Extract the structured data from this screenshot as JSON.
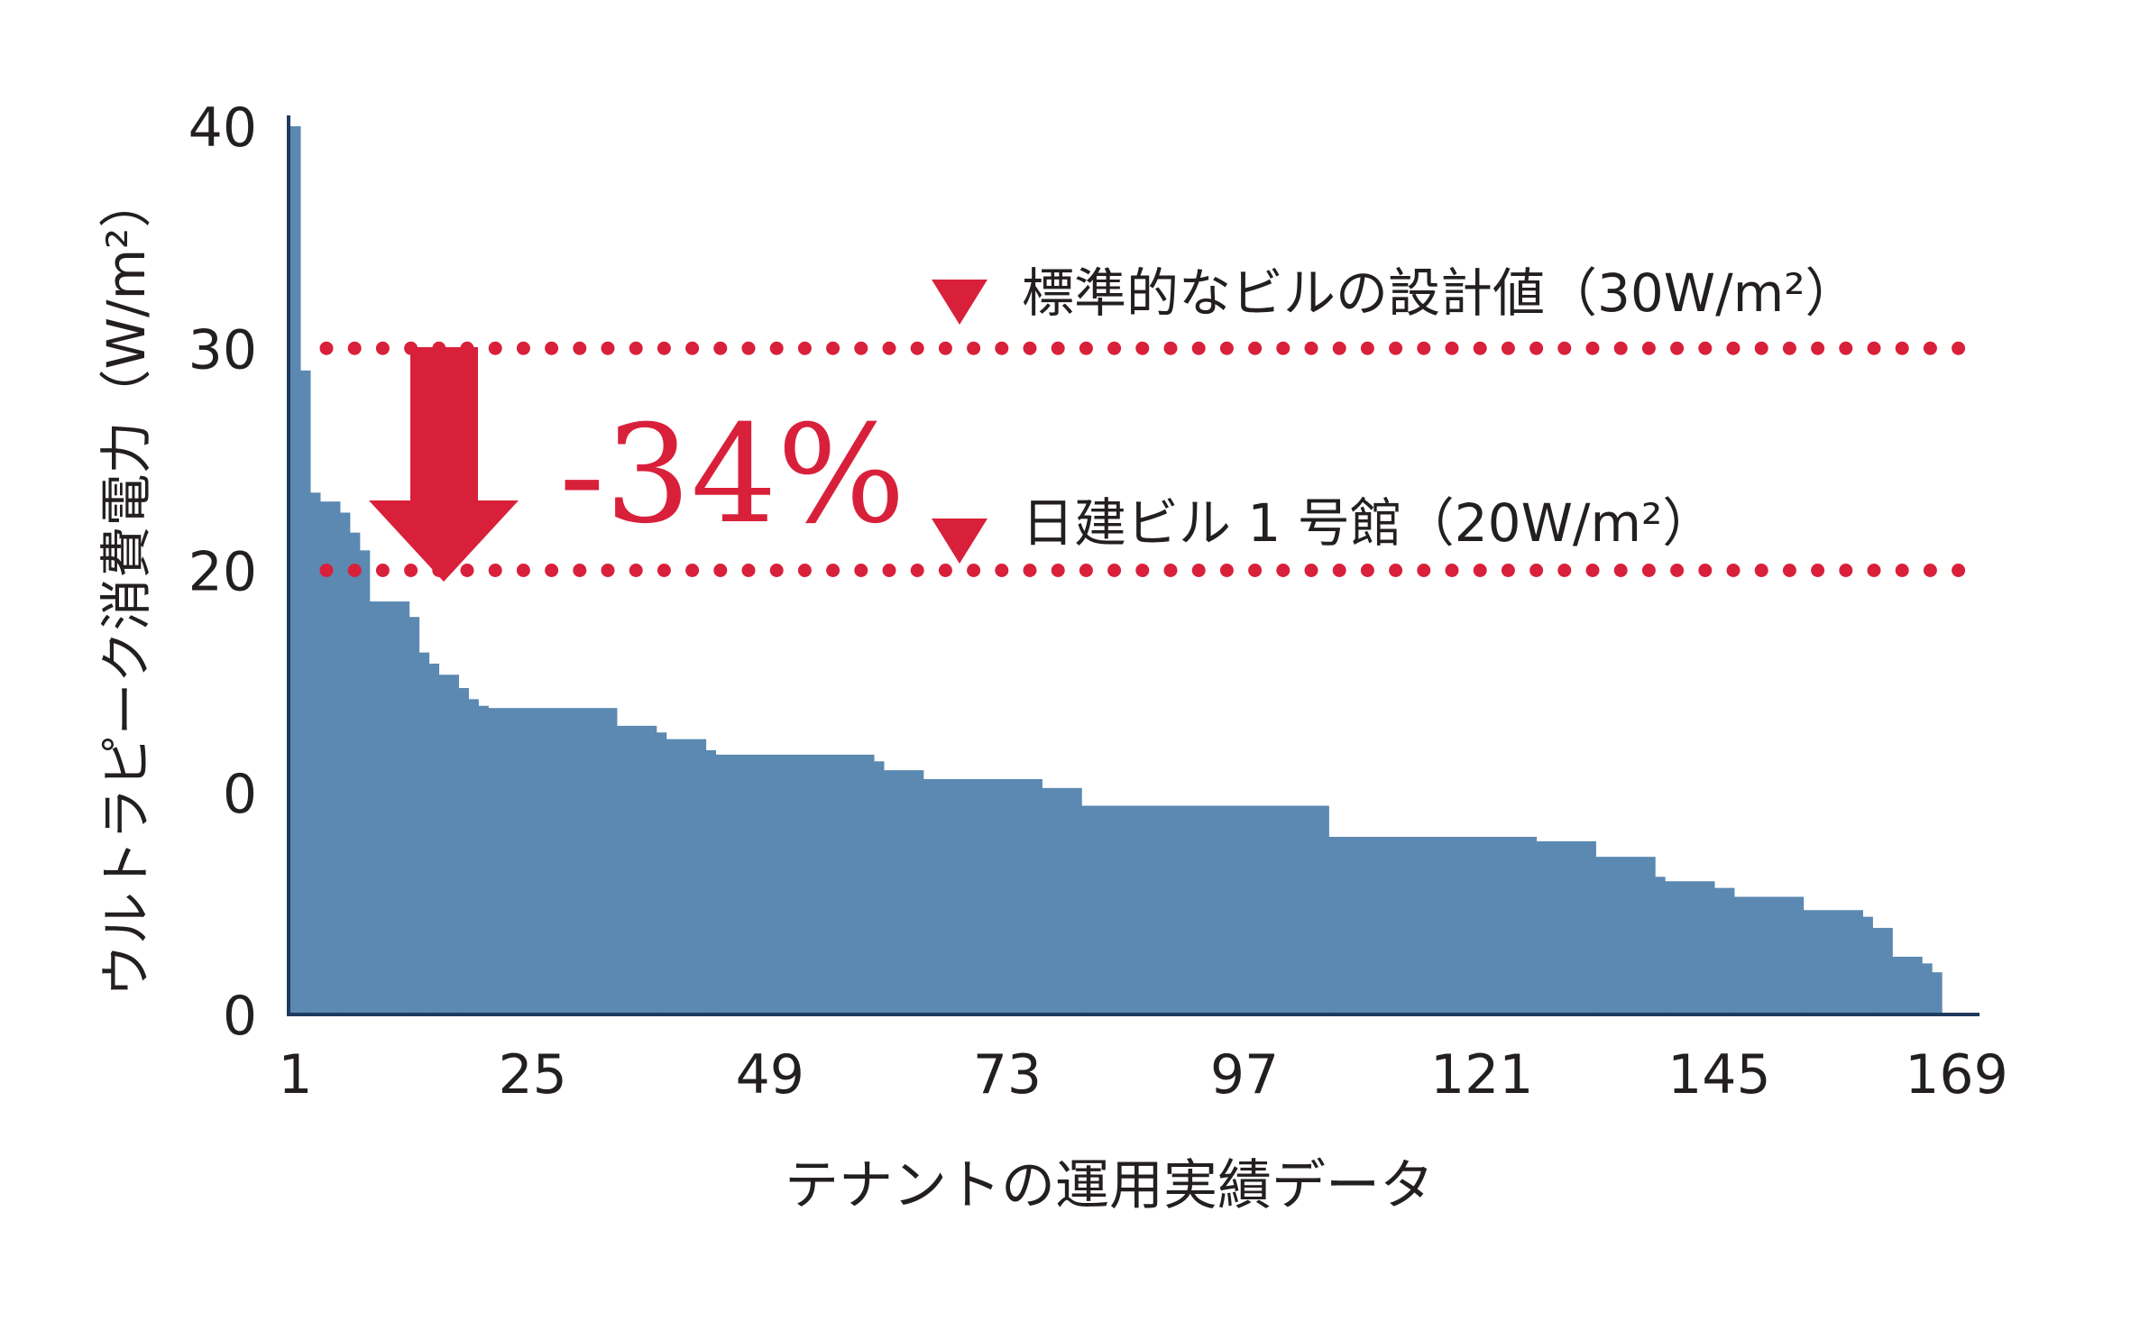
{
  "chart_data": {
    "type": "bar",
    "title": "",
    "xlabel": "テナントの運用実績データ",
    "ylabel": "ウルトラピーク消費電力（W/m²）",
    "ylim": [
      0,
      40
    ],
    "y_ticks": [
      "0",
      "0",
      "20",
      "30",
      "40"
    ],
    "x_ticks": [
      1,
      25,
      49,
      73,
      97,
      121,
      145,
      169
    ],
    "x_tick_labels": [
      "1",
      "25",
      "49",
      "73",
      "97",
      "121",
      "145",
      "169"
    ],
    "grid": false,
    "reference_lines": [
      {
        "value": 30,
        "label": "標準的なビルの設計値（30W/m²）",
        "color": "#d9203a"
      },
      {
        "value": 20,
        "label": "日建ビル 1 号館（20W/m²）",
        "color": "#d9203a"
      }
    ],
    "annotation": {
      "text": "-34%",
      "from": 30,
      "to": 20
    },
    "bar_color": "#5b89b1",
    "accent_color": "#d9203a",
    "steps": [
      {
        "from": 1,
        "to": 1,
        "value": 40
      },
      {
        "from": 2,
        "to": 2,
        "value": 29
      },
      {
        "from": 3,
        "to": 3,
        "value": 23.5
      },
      {
        "from": 4,
        "to": 5,
        "value": 23.1
      },
      {
        "from": 6,
        "to": 6,
        "value": 22.6
      },
      {
        "from": 7,
        "to": 7,
        "value": 21.7
      },
      {
        "from": 8,
        "to": 8,
        "value": 20.9
      },
      {
        "from": 9,
        "to": 12,
        "value": 18.6
      },
      {
        "from": 13,
        "to": 13,
        "value": 17.9
      },
      {
        "from": 14,
        "to": 14,
        "value": 16.3
      },
      {
        "from": 15,
        "to": 15,
        "value": 15.8
      },
      {
        "from": 16,
        "to": 17,
        "value": 15.3
      },
      {
        "from": 18,
        "to": 18,
        "value": 14.7
      },
      {
        "from": 19,
        "to": 19,
        "value": 14.2
      },
      {
        "from": 20,
        "to": 20,
        "value": 13.9
      },
      {
        "from": 21,
        "to": 33,
        "value": 13.8
      },
      {
        "from": 34,
        "to": 37,
        "value": 13.0
      },
      {
        "from": 38,
        "to": 38,
        "value": 12.7
      },
      {
        "from": 39,
        "to": 42,
        "value": 12.4
      },
      {
        "from": 43,
        "to": 43,
        "value": 11.9
      },
      {
        "from": 44,
        "to": 59,
        "value": 11.7
      },
      {
        "from": 60,
        "to": 60,
        "value": 11.4
      },
      {
        "from": 61,
        "to": 64,
        "value": 11.0
      },
      {
        "from": 65,
        "to": 76,
        "value": 10.6
      },
      {
        "from": 77,
        "to": 80,
        "value": 10.2
      },
      {
        "from": 81,
        "to": 105,
        "value": 9.4
      },
      {
        "from": 106,
        "to": 126,
        "value": 8.0
      },
      {
        "from": 127,
        "to": 132,
        "value": 7.8
      },
      {
        "from": 133,
        "to": 138,
        "value": 7.1
      },
      {
        "from": 139,
        "to": 139,
        "value": 6.2
      },
      {
        "from": 140,
        "to": 144,
        "value": 6.0
      },
      {
        "from": 145,
        "to": 146,
        "value": 5.7
      },
      {
        "from": 147,
        "to": 153,
        "value": 5.3
      },
      {
        "from": 154,
        "to": 159,
        "value": 4.7
      },
      {
        "from": 160,
        "to": 160,
        "value": 4.4
      },
      {
        "from": 161,
        "to": 162,
        "value": 3.9
      },
      {
        "from": 163,
        "to": 165,
        "value": 2.6
      },
      {
        "from": 166,
        "to": 166,
        "value": 2.3
      },
      {
        "from": 167,
        "to": 167,
        "value": 1.9
      }
    ]
  }
}
